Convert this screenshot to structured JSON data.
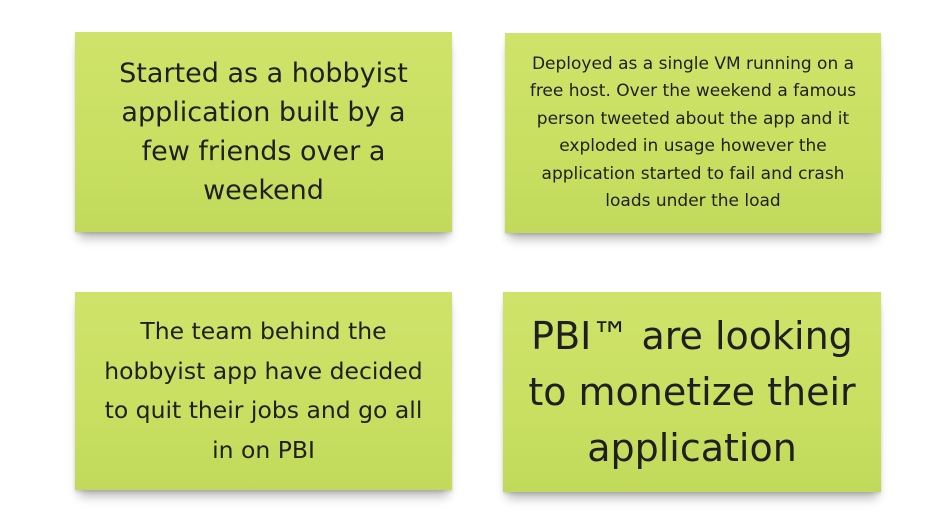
{
  "notes": [
    {
      "text": "Started as a hobbyist application built by a few friends over a weekend"
    },
    {
      "text": "Deployed as a single VM running on a free host. Over the weekend a famous person tweeted about the app and it exploded in usage however the application started to fail and crash loads under the load"
    },
    {
      "text": "The team behind the hobbyist app have decided to quit their jobs and go all in on PBI"
    },
    {
      "text": "PBI™ are looking to monetize their application"
    }
  ],
  "colors": {
    "note_background": "#c8df62",
    "text": "#1f1f1f",
    "page_background": "#ffffff"
  }
}
